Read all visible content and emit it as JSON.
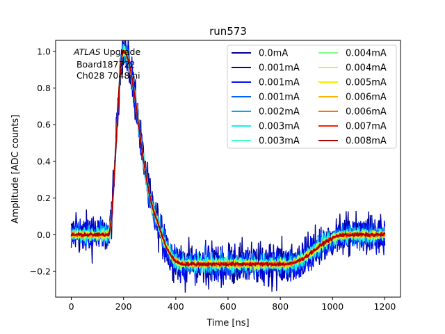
{
  "chart_data": {
    "type": "line",
    "title": "run573",
    "xlabel": "Time [ns]",
    "ylabel": "Amplitude [ADC counts]",
    "xlim": [
      -60,
      1260
    ],
    "ylim": [
      -0.34,
      1.06
    ],
    "xticks": [
      0,
      200,
      400,
      600,
      800,
      1000,
      1200
    ],
    "yticks": [
      -0.2,
      0.0,
      0.2,
      0.4,
      0.6,
      0.8,
      1.0
    ],
    "xtick_labels": [
      "0",
      "200",
      "400",
      "600",
      "800",
      "1000",
      "1200"
    ],
    "ytick_labels": [
      "−0.2",
      "0.0",
      "0.2",
      "0.4",
      "0.6",
      "0.8",
      "1.0"
    ],
    "annotation": {
      "italic": "ATLAS",
      "rest": " Upgrade",
      "line2": " Board187722",
      "line3": " Ch028 7048 hi"
    },
    "legend_position": "top-right",
    "x_range": [
      0,
      1200
    ],
    "pulse_shape": {
      "baseline": 0.0,
      "peak_time_ns": 200,
      "peak_amplitude": 1.0,
      "undershoot_min": -0.16,
      "undershoot_plateau_ns": [
        430,
        820
      ],
      "recovery_end_ns": 1050
    },
    "series": [
      {
        "name": "0.0mA",
        "color": "#00008f",
        "noise": 0.06
      },
      {
        "name": "0.001mA",
        "color": "#0000c8",
        "noise": 0.05
      },
      {
        "name": "0.001mA",
        "color": "#0010ff",
        "noise": 0.045
      },
      {
        "name": "0.001mA",
        "color": "#0060ff",
        "noise": 0.035
      },
      {
        "name": "0.002mA",
        "color": "#00a8f0",
        "noise": 0.028
      },
      {
        "name": "0.003mA",
        "color": "#10f0f0",
        "noise": 0.022
      },
      {
        "name": "0.003mA",
        "color": "#40ffc0",
        "noise": 0.018
      },
      {
        "name": "0.004mA",
        "color": "#80ff80",
        "noise": 0.014
      },
      {
        "name": "0.004mA",
        "color": "#c0ff40",
        "noise": 0.012
      },
      {
        "name": "0.005mA",
        "color": "#f0f000",
        "noise": 0.01
      },
      {
        "name": "0.006mA",
        "color": "#ffb000",
        "noise": 0.008
      },
      {
        "name": "0.006mA",
        "color": "#ff7000",
        "noise": 0.007
      },
      {
        "name": "0.007mA",
        "color": "#ff2000",
        "noise": 0.006
      },
      {
        "name": "0.008mA",
        "color": "#b00000",
        "noise": 0.005
      }
    ]
  }
}
